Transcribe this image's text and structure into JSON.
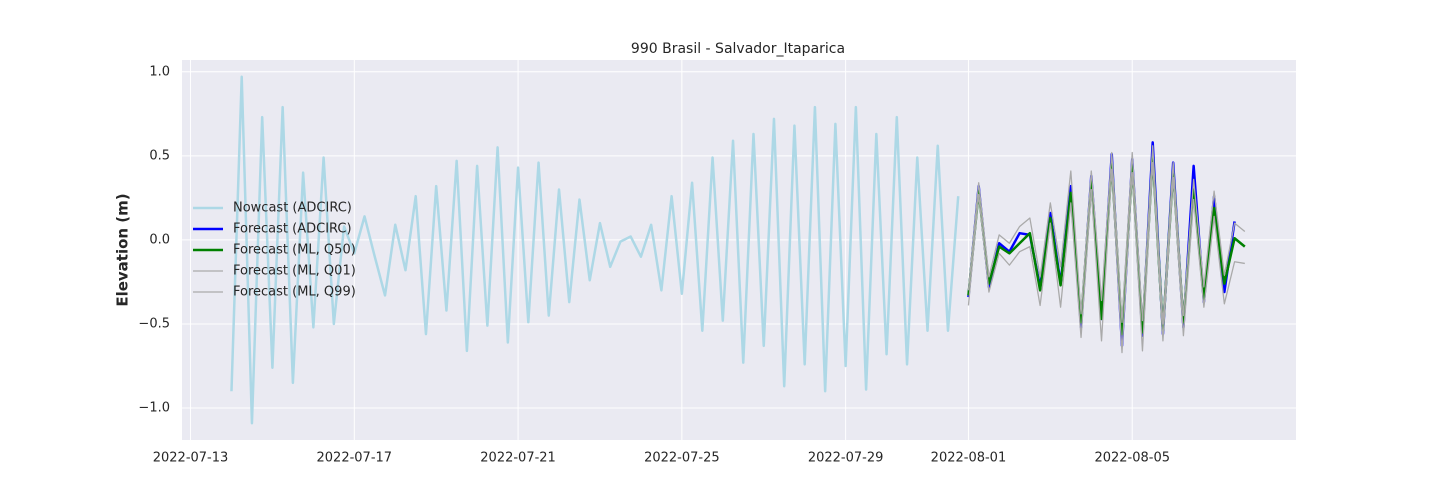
{
  "chart_data": {
    "type": "line",
    "title": "990 Brasil - Salvador_Itaparica",
    "y_label": "Elevation (m)",
    "xlim": [
      "2022-07-12 19:00",
      "2022-08-09 00:00"
    ],
    "xticks": [
      "2022-07-13",
      "2022-07-17",
      "2022-07-21",
      "2022-07-25",
      "2022-07-29",
      "2022-08-01",
      "2022-08-05"
    ],
    "ylim": [
      -1.19,
      1.07
    ],
    "yticks": [
      {
        "value": -1,
        "label": "−1.0"
      },
      {
        "value": -0.5,
        "label": "−0.5"
      },
      {
        "value": 0,
        "label": "0.0"
      },
      0.5,
      {
        "value": 1,
        "label": "1.0"
      }
    ],
    "grid": true,
    "legend": "center left",
    "series": [
      {
        "name": "Nowcast (ADCIRC)",
        "color": "#add8e6",
        "width": 2.5,
        "x": [
          "2022-07-14 00:00",
          "2022-07-14 06:00",
          "2022-07-14 12:00",
          "2022-07-14 18:00",
          "2022-07-15 00:00",
          "2022-07-15 06:00",
          "2022-07-15 12:00",
          "2022-07-15 18:00",
          "2022-07-16 00:00",
          "2022-07-16 06:00",
          "2022-07-16 12:00",
          "2022-07-16 18:00",
          "2022-07-17 00:00",
          "2022-07-17 06:00",
          "2022-07-17 12:00",
          "2022-07-17 18:00",
          "2022-07-18 00:00",
          "2022-07-18 06:00",
          "2022-07-18 12:00",
          "2022-07-18 18:00",
          "2022-07-19 00:00",
          "2022-07-19 06:00",
          "2022-07-19 12:00",
          "2022-07-19 18:00",
          "2022-07-20 00:00",
          "2022-07-20 06:00",
          "2022-07-20 12:00",
          "2022-07-20 18:00",
          "2022-07-21 00:00",
          "2022-07-21 06:00",
          "2022-07-21 12:00",
          "2022-07-21 18:00",
          "2022-07-22 00:00",
          "2022-07-22 06:00",
          "2022-07-22 12:00",
          "2022-07-22 18:00",
          "2022-07-23 00:00",
          "2022-07-23 06:00",
          "2022-07-23 12:00",
          "2022-07-23 18:00",
          "2022-07-24 00:00",
          "2022-07-24 06:00",
          "2022-07-24 12:00",
          "2022-07-24 18:00",
          "2022-07-25 00:00",
          "2022-07-25 06:00",
          "2022-07-25 12:00",
          "2022-07-25 18:00",
          "2022-07-26 00:00",
          "2022-07-26 06:00",
          "2022-07-26 12:00",
          "2022-07-26 18:00",
          "2022-07-27 00:00",
          "2022-07-27 06:00",
          "2022-07-27 12:00",
          "2022-07-27 18:00",
          "2022-07-28 00:00",
          "2022-07-28 06:00",
          "2022-07-28 12:00",
          "2022-07-28 18:00",
          "2022-07-29 00:00",
          "2022-07-29 06:00",
          "2022-07-29 12:00",
          "2022-07-29 18:00",
          "2022-07-30 00:00",
          "2022-07-30 06:00",
          "2022-07-30 12:00",
          "2022-07-30 18:00",
          "2022-07-31 00:00",
          "2022-07-31 06:00",
          "2022-07-31 12:00",
          "2022-07-31 18:00"
        ],
        "values": [
          -0.9,
          0.97,
          -1.09,
          0.73,
          -0.76,
          0.79,
          -0.85,
          0.4,
          -0.52,
          0.49,
          -0.5,
          0.08,
          -0.08,
          0.14,
          -0.1,
          -0.33,
          0.09,
          -0.18,
          0.26,
          -0.56,
          0.32,
          -0.42,
          0.47,
          -0.66,
          0.44,
          -0.51,
          0.55,
          -0.61,
          0.43,
          -0.49,
          0.46,
          -0.45,
          0.3,
          -0.37,
          0.24,
          -0.24,
          0.1,
          -0.16,
          -0.01,
          0.02,
          -0.1,
          0.09,
          -0.3,
          0.26,
          -0.32,
          0.34,
          -0.54,
          0.49,
          -0.48,
          0.59,
          -0.73,
          0.63,
          -0.63,
          0.72,
          -0.87,
          0.68,
          -0.74,
          0.79,
          -0.9,
          0.69,
          -0.75,
          0.79,
          -0.89,
          0.63,
          -0.68,
          0.73,
          -0.74,
          0.49,
          -0.54,
          0.56,
          -0.54,
          0.26
        ]
      },
      {
        "name": "Forecast (ADCIRC)",
        "color": "#0000ff",
        "width": 2.5,
        "x": [
          "2022-08-01 00:00",
          "2022-08-01 06:00",
          "2022-08-01 12:00",
          "2022-08-01 18:00",
          "2022-08-02 00:00",
          "2022-08-02 06:00",
          "2022-08-02 12:00",
          "2022-08-02 18:00",
          "2022-08-03 00:00",
          "2022-08-03 06:00",
          "2022-08-03 12:00",
          "2022-08-03 18:00",
          "2022-08-04 00:00",
          "2022-08-04 06:00",
          "2022-08-04 12:00",
          "2022-08-04 18:00",
          "2022-08-05 00:00",
          "2022-08-05 06:00",
          "2022-08-05 12:00",
          "2022-08-05 18:00",
          "2022-08-06 00:00",
          "2022-08-06 06:00",
          "2022-08-06 12:00",
          "2022-08-06 18:00",
          "2022-08-07 00:00",
          "2022-08-07 06:00",
          "2022-08-07 12:00"
        ],
        "values": [
          -0.34,
          0.32,
          -0.28,
          -0.02,
          -0.07,
          0.04,
          0.03,
          -0.28,
          0.16,
          -0.26,
          0.32,
          -0.52,
          0.38,
          -0.47,
          0.51,
          -0.63,
          0.48,
          -0.57,
          0.58,
          -0.56,
          0.46,
          -0.52,
          0.44,
          -0.37,
          0.26,
          -0.31,
          0.11
        ]
      },
      {
        "name": "Forecast (ML, Q50)",
        "color": "#008000",
        "width": 2.5,
        "x": [
          "2022-08-01 00:00",
          "2022-08-01 06:00",
          "2022-08-01 12:00",
          "2022-08-01 18:00",
          "2022-08-02 00:00",
          "2022-08-02 06:00",
          "2022-08-02 12:00",
          "2022-08-02 18:00",
          "2022-08-03 00:00",
          "2022-08-03 06:00",
          "2022-08-03 12:00",
          "2022-08-03 18:00",
          "2022-08-04 00:00",
          "2022-08-04 06:00",
          "2022-08-04 12:00",
          "2022-08-04 18:00",
          "2022-08-05 00:00",
          "2022-08-05 06:00",
          "2022-08-05 12:00",
          "2022-08-05 18:00",
          "2022-08-06 00:00",
          "2022-08-06 06:00",
          "2022-08-06 12:00",
          "2022-08-06 18:00",
          "2022-08-07 00:00",
          "2022-08-07 06:00",
          "2022-08-07 12:00",
          "2022-08-07 18:00"
        ],
        "values": [
          -0.33,
          0.29,
          -0.26,
          -0.04,
          -0.08,
          -0.02,
          0.04,
          -0.3,
          0.13,
          -0.27,
          0.28,
          -0.49,
          0.35,
          -0.47,
          0.46,
          -0.56,
          0.44,
          -0.55,
          0.5,
          -0.54,
          0.41,
          -0.49,
          0.3,
          -0.35,
          0.19,
          -0.26,
          0.01,
          -0.04
        ]
      },
      {
        "name": "Forecast (ML, Q01)",
        "color": "#aaaaaa",
        "width": 1.3,
        "x": [
          "2022-08-01 00:00",
          "2022-08-01 06:00",
          "2022-08-01 12:00",
          "2022-08-01 18:00",
          "2022-08-02 00:00",
          "2022-08-02 06:00",
          "2022-08-02 12:00",
          "2022-08-02 18:00",
          "2022-08-03 00:00",
          "2022-08-03 06:00",
          "2022-08-03 12:00",
          "2022-08-03 18:00",
          "2022-08-04 00:00",
          "2022-08-04 06:00",
          "2022-08-04 12:00",
          "2022-08-04 18:00",
          "2022-08-05 00:00",
          "2022-08-05 06:00",
          "2022-08-05 12:00",
          "2022-08-05 18:00",
          "2022-08-06 00:00",
          "2022-08-06 06:00",
          "2022-08-06 12:00",
          "2022-08-06 18:00",
          "2022-08-07 00:00",
          "2022-08-07 06:00",
          "2022-08-07 12:00",
          "2022-08-07 18:00"
        ],
        "values": [
          -0.39,
          0.27,
          -0.31,
          -0.08,
          -0.15,
          -0.07,
          -0.04,
          -0.39,
          0.1,
          -0.4,
          0.22,
          -0.58,
          0.3,
          -0.6,
          0.42,
          -0.67,
          0.4,
          -0.66,
          0.46,
          -0.6,
          0.37,
          -0.57,
          0.24,
          -0.4,
          0.14,
          -0.38,
          -0.13,
          -0.14
        ]
      },
      {
        "name": "Forecast (ML, Q99)",
        "color": "#aaaaaa",
        "width": 1.3,
        "x": [
          "2022-08-01 00:00",
          "2022-08-01 06:00",
          "2022-08-01 12:00",
          "2022-08-01 18:00",
          "2022-08-02 00:00",
          "2022-08-02 06:00",
          "2022-08-02 12:00",
          "2022-08-02 18:00",
          "2022-08-03 00:00",
          "2022-08-03 06:00",
          "2022-08-03 12:00",
          "2022-08-03 18:00",
          "2022-08-04 00:00",
          "2022-08-04 06:00",
          "2022-08-04 12:00",
          "2022-08-04 18:00",
          "2022-08-05 00:00",
          "2022-08-05 06:00",
          "2022-08-05 12:00",
          "2022-08-05 18:00",
          "2022-08-06 00:00",
          "2022-08-06 06:00",
          "2022-08-06 12:00",
          "2022-08-06 18:00",
          "2022-08-07 00:00",
          "2022-08-07 06:00",
          "2022-08-07 12:00",
          "2022-08-07 18:00"
        ],
        "values": [
          -0.3,
          0.34,
          -0.22,
          0.03,
          -0.02,
          0.08,
          0.13,
          -0.22,
          0.22,
          -0.16,
          0.41,
          -0.44,
          0.41,
          -0.36,
          0.52,
          -0.49,
          0.52,
          -0.48,
          0.56,
          -0.5,
          0.46,
          -0.45,
          0.36,
          -0.28,
          0.29,
          -0.21,
          0.1,
          0.05
        ]
      }
    ]
  }
}
